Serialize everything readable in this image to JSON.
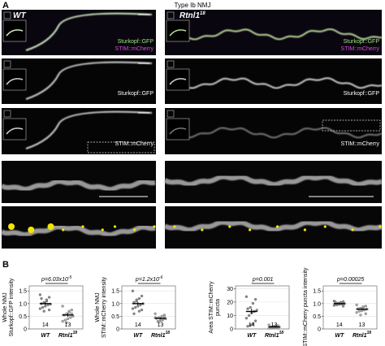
{
  "panel_a": {
    "letter": "A",
    "title": "Type Ib NMJ",
    "columns": [
      {
        "genotype": "WT"
      },
      {
        "genotype": "Rtnl1",
        "superscript": "18"
      }
    ],
    "channels": [
      "Sturkopf::GFP",
      "STIM::mCherry"
    ]
  },
  "panel_b": {
    "letter": "B",
    "plots": [
      {
        "ylabel": [
          "Whole NMJ",
          "Sturkopf::GFP intensity"
        ],
        "p_label": "p=6.03x10",
        "p_exponent": "-5",
        "ylim": [
          0,
          1.7
        ],
        "yticks": [
          0,
          0.5,
          {
            "value": 1,
            "label": "1.0"
          },
          1.5
        ],
        "groups": [
          {
            "label": "WT",
            "n": 14,
            "mean": 1.0,
            "sem": 0.06,
            "points": [
              1.35,
              1.25,
              1.1,
              1.05,
              1.0,
              0.98,
              0.95,
              0.9,
              0.85,
              0.8,
              0.75,
              1.15,
              0.7,
              1.2
            ]
          },
          {
            "label": "Rtnl1",
            "superscript": "18",
            "n": 13,
            "mean": 0.55,
            "sem": 0.07,
            "points": [
              0.9,
              0.75,
              0.7,
              0.6,
              0.55,
              0.5,
              0.45,
              0.4,
              0.35,
              0.3,
              0.6,
              0.65,
              0.25
            ]
          }
        ]
      },
      {
        "ylabel": [
          "Whole NMJ",
          "STIM::mCherry intensity"
        ],
        "p_label": "p=1.2x10",
        "p_exponent": "-6",
        "ylim": [
          0,
          1.7
        ],
        "yticks": [
          0,
          0.5,
          {
            "value": 1,
            "label": "1.0"
          },
          1.5
        ],
        "groups": [
          {
            "label": "WT",
            "n": 14,
            "mean": 1.0,
            "sem": 0.06,
            "points": [
              1.5,
              1.3,
              1.2,
              1.1,
              1.05,
              1.0,
              0.95,
              0.9,
              0.85,
              0.8,
              0.75,
              0.7,
              1.15,
              0.6
            ]
          },
          {
            "label": "Rtnl1",
            "superscript": "18",
            "n": 13,
            "mean": 0.42,
            "sem": 0.03,
            "points": [
              0.6,
              0.55,
              0.5,
              0.45,
              0.42,
              0.4,
              0.38,
              0.35,
              0.3,
              0.45,
              0.5,
              0.33,
              0.28
            ]
          }
        ]
      },
      {
        "ylabel": [
          "Area STIM::mCherry",
          "puncta"
        ],
        "p_label": "p=0.001",
        "ylim": [
          0,
          32
        ],
        "yticks": [
          0,
          10,
          20,
          30
        ],
        "groups": [
          {
            "label": "WT",
            "n": 14,
            "mean": 13,
            "sem": 2,
            "points": [
              24,
              22,
              19,
              16,
              15,
              14,
              13,
              12,
              10,
              8,
              6,
              4,
              3,
              2
            ]
          },
          {
            "label": "Rtnl1",
            "superscript": "18",
            "n": 13,
            "mean": 1.5,
            "sem": 0.3,
            "points": [
              3,
              2.5,
              2,
              2,
              1.5,
              1.5,
              1,
              1,
              1,
              0.5,
              0.5,
              2,
              1.2
            ]
          }
        ]
      },
      {
        "ylabel": [
          "STIM::mCherry puncta intensity"
        ],
        "p_label": "p=0.00025",
        "ylim": [
          0,
          1.7
        ],
        "yticks": [
          0,
          0.5,
          {
            "value": 1,
            "label": "1.0"
          },
          1.5
        ],
        "groups": [
          {
            "label": "WT",
            "n": 14,
            "mean": 1.0,
            "sem": 0.02,
            "points": [
              1.1,
              1.08,
              1.05,
              1.02,
              1.0,
              1.0,
              0.98,
              0.97,
              0.95,
              0.93,
              0.9,
              1.04,
              0.99,
              1.06
            ]
          },
          {
            "label": "Rtnl1",
            "superscript": "18",
            "n": 13,
            "mean": 0.78,
            "sem": 0.03,
            "points": [
              0.95,
              0.9,
              0.85,
              0.82,
              0.8,
              0.78,
              0.75,
              0.72,
              0.7,
              0.65,
              0.6,
              0.88,
              0.55
            ]
          }
        ]
      }
    ]
  }
}
